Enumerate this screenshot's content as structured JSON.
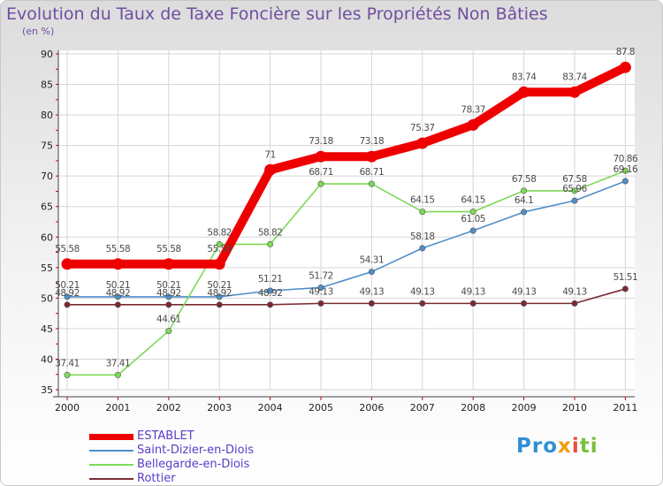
{
  "title": "Evolution du Taux de Taxe Foncière sur les Propriétés Non Bâties",
  "subtitle": "(en %)",
  "logo": {
    "text": [
      "Pro",
      "x",
      "i",
      "ti"
    ],
    "colors": [
      "#2f8fd6",
      "#f39c12",
      "#e74c3c",
      "#7cbf3a"
    ]
  },
  "chart_data": {
    "type": "line",
    "x": [
      "2000",
      "2001",
      "2002",
      "2003",
      "2004",
      "2005",
      "2006",
      "2007",
      "2008",
      "2009",
      "2010",
      "2011"
    ],
    "ylim": [
      35,
      90
    ],
    "yticks": [
      35,
      40,
      45,
      50,
      55,
      60,
      65,
      70,
      75,
      80,
      85,
      90
    ],
    "grid": true,
    "legend_position": "bottom-left",
    "series": [
      {
        "name": "ESTABLET",
        "color": "#ee0000",
        "values": [
          55.58,
          55.58,
          55.58,
          55.58,
          71,
          73.18,
          73.18,
          75.37,
          78.37,
          83.74,
          83.74,
          87.8
        ],
        "labels": [
          "55.58",
          "55.58",
          "55.58",
          "55.58",
          "71",
          "73.18",
          "73.18",
          "75.37",
          "78.37",
          "83.74",
          "83.74",
          "87.8"
        ]
      },
      {
        "name": "Saint-Dizier-en-Diois",
        "color": "#4f8ec9",
        "values": [
          50.21,
          50.21,
          50.21,
          50.21,
          51.21,
          51.72,
          54.31,
          58.18,
          61.05,
          64.1,
          65.96,
          69.16
        ],
        "labels": [
          "50.21",
          "50.21",
          "50.21",
          "50.21",
          "51.21",
          "51.72",
          "54.31",
          "58.18",
          "61.05",
          "64.1",
          "65.96",
          "69.16"
        ]
      },
      {
        "name": "Bellegarde-en-Diois",
        "color": "#7ed957",
        "values": [
          37.41,
          37.41,
          44.61,
          58.82,
          58.82,
          68.71,
          68.71,
          64.15,
          64.15,
          67.58,
          67.58,
          70.86
        ],
        "labels": [
          "37.41",
          "37.41",
          "44.61",
          "58.82",
          "58.82",
          "68.71",
          "68.71",
          "64.15",
          "64.15",
          "67.58",
          "67.58",
          "70.86"
        ]
      },
      {
        "name": "Rottier",
        "color": "#7a2a32",
        "values": [
          48.92,
          48.92,
          48.92,
          48.92,
          48.92,
          49.13,
          49.13,
          49.13,
          49.13,
          49.13,
          49.13,
          51.51
        ],
        "labels": [
          "48.92",
          "48.92",
          "48.92",
          "48.92",
          "48.92",
          "49.13",
          "49.13",
          "49.13",
          "49.13",
          "49.13",
          "49.13",
          "51.51"
        ]
      }
    ]
  }
}
